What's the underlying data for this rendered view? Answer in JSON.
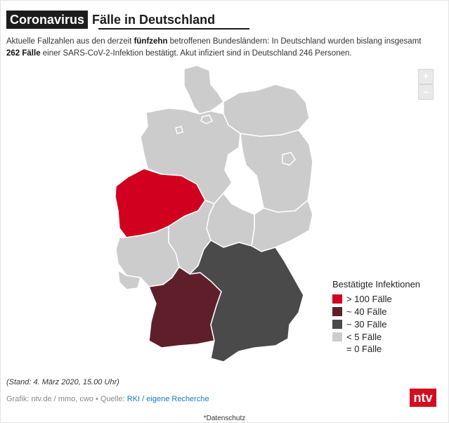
{
  "header": {
    "tag": "Coronavirus",
    "title": "Fälle in Deutschland"
  },
  "intro": {
    "part1": "Aktuelle Fallzahlen aus den derzeit ",
    "bold1": "fünfzehn",
    "part2": " betroffenen Bundesländern: In Deutschland wurden bislang insgesamt ",
    "bold2": "262 Fälle",
    "part3": " einer SARS-CoV-2-Infektion bestätigt. Akut infiziert sind in Deutschland 246 Personen."
  },
  "zoom": {
    "in": "+",
    "out": "–"
  },
  "legend": {
    "title": "Bestätigte Infektionen",
    "items": [
      {
        "label": "> 100 Fälle",
        "color": "#d1001f"
      },
      {
        "label": "~ 40 Fälle",
        "color": "#5e1f2b"
      },
      {
        "label": "~ 30 Fälle",
        "color": "#4a4a4a"
      },
      {
        "label": "< 5 Fälle",
        "color": "#cccccc"
      }
    ],
    "extra": "= 0 Fälle"
  },
  "stand": "(Stand: 4. März 2020, 15.00 Uhr)",
  "credit": {
    "prefix": "Grafik: ntv.de / mmo, cwo • Quelle: ",
    "link1": "RKI",
    "sep": " / ",
    "link2": "eigene Recherche"
  },
  "logo": "ntv",
  "footer": "*Datenschutz",
  "map": {
    "regions": [
      {
        "name": "Schleswig-Holstein",
        "level": "< 5 Fälle",
        "color": "#cccccc"
      },
      {
        "name": "Hamburg",
        "level": "< 5 Fälle",
        "color": "#cccccc"
      },
      {
        "name": "Mecklenburg-Vorpommern",
        "level": "< 5 Fälle",
        "color": "#cccccc"
      },
      {
        "name": "Niedersachsen",
        "level": "< 5 Fälle",
        "color": "#cccccc"
      },
      {
        "name": "Bremen",
        "level": "< 5 Fälle",
        "color": "#cccccc"
      },
      {
        "name": "Brandenburg",
        "level": "< 5 Fälle",
        "color": "#cccccc"
      },
      {
        "name": "Berlin",
        "level": "< 5 Fälle",
        "color": "#cccccc"
      },
      {
        "name": "Sachsen-Anhalt",
        "level": "= 0 Fälle",
        "color": "#ffffff"
      },
      {
        "name": "Sachsen",
        "level": "< 5 Fälle",
        "color": "#cccccc"
      },
      {
        "name": "Thüringen",
        "level": "< 5 Fälle",
        "color": "#cccccc"
      },
      {
        "name": "Nordrhein-Westfalen",
        "level": "> 100 Fälle",
        "color": "#d1001f"
      },
      {
        "name": "Hessen",
        "level": "< 5 Fälle",
        "color": "#cccccc"
      },
      {
        "name": "Rheinland-Pfalz",
        "level": "< 5 Fälle",
        "color": "#cccccc"
      },
      {
        "name": "Saarland",
        "level": "< 5 Fälle",
        "color": "#cccccc"
      },
      {
        "name": "Baden-Württemberg",
        "level": "~ 40 Fälle",
        "color": "#5e1f2b"
      },
      {
        "name": "Bayern",
        "level": "~ 30 Fälle",
        "color": "#4a4a4a"
      }
    ]
  }
}
